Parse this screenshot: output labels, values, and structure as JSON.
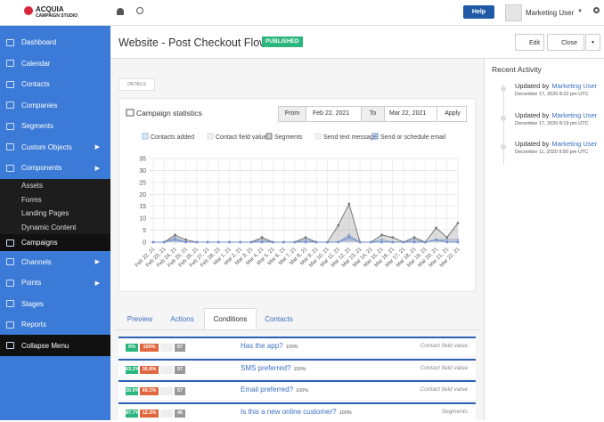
{
  "header": {
    "logo": "ACQUIA",
    "logo_sub": "CAMPAIGN STUDIO",
    "help": "Help",
    "user": "Marketing User"
  },
  "sidebar": {
    "items": [
      "Dashboard",
      "Calendar",
      "Contacts",
      "Companies",
      "Segments",
      "Custom Objects",
      "Components"
    ],
    "subitems": [
      "Assets",
      "Forms",
      "Landing Pages",
      "Dynamic Content",
      "Campaigns"
    ],
    "items_after": [
      "Channels",
      "Points",
      "Stages",
      "Reports"
    ],
    "collapse": "Collapse Menu"
  },
  "page": {
    "title": "Website - Post Checkout Flow",
    "status": "PUBLISHED",
    "edit": "Edit",
    "close": "Close",
    "details": "DETAILS"
  },
  "filters": {
    "from": "From",
    "from_date": "Feb 22, 2021",
    "to": "To",
    "to_date": "Mar 22, 2021",
    "apply": "Apply"
  },
  "chart_data": {
    "type": "line",
    "title": "Campaign statistics",
    "categories": [
      "Feb 22, 21",
      "Feb 23, 21",
      "Feb 24, 21",
      "Feb 25, 21",
      "Feb 26, 21",
      "Feb 27, 21",
      "Feb 28, 21",
      "Mar 1, 21",
      "Mar 2, 21",
      "Mar 3, 21",
      "Mar 4, 21",
      "Mar 5, 21",
      "Mar 6, 21",
      "Mar 7, 21",
      "Mar 8, 21",
      "Mar 9, 21",
      "Mar 10, 21",
      "Mar 11, 21",
      "Mar 12, 21",
      "Mar 13, 21",
      "Mar 14, 21",
      "Mar 15, 21",
      "Mar 16, 21",
      "Mar 17, 21",
      "Mar 18, 21",
      "Mar 19, 21",
      "Mar 20, 21",
      "Mar 21, 21",
      "Mar 22, 21"
    ],
    "series": [
      {
        "name": "Contacts added",
        "color": "#9fb9e3",
        "values": [
          0,
          0,
          2,
          0,
          0,
          0,
          0,
          0,
          0,
          0,
          1,
          0,
          0,
          0,
          1,
          0,
          0,
          0,
          3,
          0,
          0,
          1,
          0,
          0,
          1,
          0,
          1,
          1,
          1
        ]
      },
      {
        "name": "Contact field value",
        "color": "#d9d9d9",
        "values": [
          0,
          0,
          0,
          0,
          0,
          0,
          0,
          0,
          0,
          0,
          0,
          0,
          0,
          0,
          0,
          0,
          0,
          0,
          0,
          0,
          0,
          0,
          0,
          0,
          0,
          0,
          0,
          0,
          0
        ]
      },
      {
        "name": "Segments",
        "color": "#777777",
        "values": [
          0,
          0,
          3,
          1,
          0,
          0,
          0,
          0,
          0,
          0,
          2,
          0,
          0,
          0,
          2,
          0,
          0,
          7,
          16,
          0,
          0,
          3,
          2,
          0,
          2,
          0,
          6,
          2,
          8
        ]
      },
      {
        "name": "Send text message",
        "color": "#e0e0e0",
        "values": [
          0,
          0,
          0,
          0,
          0,
          0,
          0,
          0,
          0,
          0,
          0,
          0,
          0,
          0,
          0,
          0,
          0,
          0,
          0,
          0,
          0,
          0,
          0,
          0,
          0,
          0,
          0,
          0,
          0
        ]
      },
      {
        "name": "Send or schedule email",
        "color": "#6f8fd0",
        "values": [
          0,
          0,
          1,
          0,
          0,
          0,
          0,
          0,
          0,
          0,
          0,
          0,
          0,
          0,
          0,
          0,
          0,
          0,
          2,
          0,
          0,
          0,
          0,
          0,
          0,
          0,
          1,
          0,
          0
        ]
      }
    ],
    "ylim": [
      0,
      35
    ],
    "yticks": [
      0,
      5,
      10,
      15,
      20,
      25,
      30,
      35
    ],
    "grid": true
  },
  "tabs": [
    "Preview",
    "Actions",
    "Conditions",
    "Contacts"
  ],
  "conditions": [
    {
      "yes": "0%",
      "no": "100%",
      "count": "57",
      "name": "Has the app?",
      "pct": "100%",
      "type": "Contact field value"
    },
    {
      "yes": "63.2%",
      "no": "36.8%",
      "count": "57",
      "name": "SMS preferred?",
      "pct": "100%",
      "type": "Contact field value"
    },
    {
      "yes": "30.9%",
      "no": "69.1%",
      "count": "57",
      "name": "Email preferred?",
      "pct": "100%",
      "type": "Contact field value"
    },
    {
      "yes": "87.7%",
      "no": "12.3%",
      "count": "46",
      "name": "Is this a new online customer?",
      "pct": "100%",
      "type": "Segments"
    }
  ],
  "activity": {
    "title": "Recent Activity",
    "items": [
      {
        "prefix": "Updated by",
        "user": "Marketing User",
        "date": "December 17, 2020 8:22 pm UTC"
      },
      {
        "prefix": "Updated by",
        "user": "Marketing User",
        "date": "December 17, 2020 8:19 pm UTC"
      },
      {
        "prefix": "Updated by",
        "user": "Marketing User",
        "date": "December 11, 2020 9:50 pm UTC"
      }
    ]
  }
}
